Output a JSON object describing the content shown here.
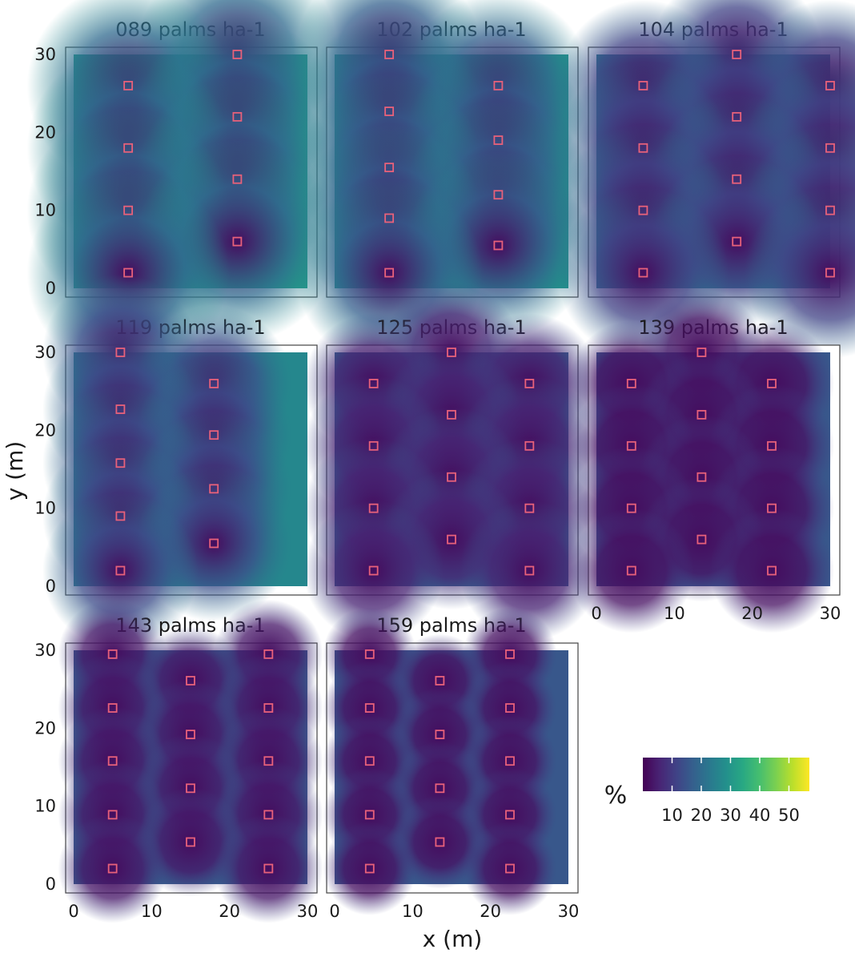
{
  "colors": {
    "palette": "viridis",
    "marker": "#e8617a",
    "panel_border": "#444444",
    "background": "#ffffff"
  },
  "chart_data": {
    "type": "heatmap",
    "layout": "small multiples, 3 columns",
    "xlabel": "x (m)",
    "ylabel": "y (m)",
    "xlim": [
      0,
      30
    ],
    "ylim": [
      0,
      30
    ],
    "x_ticks": [
      "0",
      "10",
      "20",
      "30"
    ],
    "y_ticks": [
      "0",
      "10",
      "20",
      "30"
    ],
    "grid": false,
    "colorbar": {
      "title": "%",
      "range": [
        0,
        57
      ],
      "ticks": [
        "10",
        "20",
        "30",
        "40",
        "50"
      ],
      "tick_values": [
        10,
        20,
        30,
        40,
        50
      ],
      "colormap": "viridis"
    },
    "panels": [
      {
        "title": "089 palms ha-1",
        "mean_value": 28,
        "palm_positions": [
          [
            21,
            30
          ],
          [
            7,
            26
          ],
          [
            21,
            22
          ],
          [
            7,
            18
          ],
          [
            21,
            14
          ],
          [
            7,
            10
          ],
          [
            21,
            6
          ],
          [
            7,
            2
          ]
        ]
      },
      {
        "title": "102 palms ha-1",
        "mean_value": 26,
        "palm_positions": [
          [
            7,
            30
          ],
          [
            21,
            26
          ],
          [
            7,
            22.7
          ],
          [
            21,
            19
          ],
          [
            7,
            15.5
          ],
          [
            21,
            12
          ],
          [
            7,
            9
          ],
          [
            21,
            5.5
          ],
          [
            7,
            2
          ]
        ]
      },
      {
        "title": "104 palms ha-1",
        "mean_value": 20,
        "palm_positions": [
          [
            18,
            30
          ],
          [
            6,
            26
          ],
          [
            30,
            26
          ],
          [
            18,
            22
          ],
          [
            6,
            18
          ],
          [
            30,
            18
          ],
          [
            18,
            14
          ],
          [
            6,
            10
          ],
          [
            30,
            10
          ],
          [
            18,
            6
          ],
          [
            6,
            2
          ],
          [
            30,
            2
          ]
        ]
      },
      {
        "title": "119 palms ha-1",
        "mean_value": 22,
        "palm_positions": [
          [
            6,
            30
          ],
          [
            18,
            26
          ],
          [
            6,
            22.7
          ],
          [
            18,
            19.4
          ],
          [
            6,
            15.8
          ],
          [
            18,
            12.5
          ],
          [
            6,
            9
          ],
          [
            18,
            5.5
          ],
          [
            6,
            2
          ]
        ]
      },
      {
        "title": "125 palms ha-1",
        "mean_value": 14,
        "palm_positions": [
          [
            15,
            30
          ],
          [
            5,
            26
          ],
          [
            25,
            26
          ],
          [
            15,
            22
          ],
          [
            5,
            18
          ],
          [
            25,
            18
          ],
          [
            15,
            14
          ],
          [
            5,
            10
          ],
          [
            25,
            10
          ],
          [
            15,
            6
          ],
          [
            5,
            2
          ],
          [
            25,
            2
          ]
        ]
      },
      {
        "title": "139 palms ha-1",
        "mean_value": 11,
        "palm_positions": [
          [
            13.5,
            30
          ],
          [
            4.5,
            26
          ],
          [
            22.5,
            26
          ],
          [
            13.5,
            22
          ],
          [
            4.5,
            18
          ],
          [
            22.5,
            18
          ],
          [
            13.5,
            14
          ],
          [
            4.5,
            10
          ],
          [
            22.5,
            10
          ],
          [
            13.5,
            6
          ],
          [
            4.5,
            2
          ],
          [
            22.5,
            2
          ]
        ]
      },
      {
        "title": "143 palms ha-1",
        "mean_value": 12,
        "palm_positions": [
          [
            5,
            29.5
          ],
          [
            25,
            29.5
          ],
          [
            15,
            26.1
          ],
          [
            5,
            22.6
          ],
          [
            25,
            22.6
          ],
          [
            15,
            19.2
          ],
          [
            5,
            15.8
          ],
          [
            25,
            15.8
          ],
          [
            15,
            12.3
          ],
          [
            5,
            8.9
          ],
          [
            25,
            8.9
          ],
          [
            15,
            5.4
          ],
          [
            5,
            2
          ],
          [
            25,
            2
          ]
        ]
      },
      {
        "title": "159 palms ha-1",
        "mean_value": 11,
        "palm_positions": [
          [
            4.5,
            29.5
          ],
          [
            22.5,
            29.5
          ],
          [
            13.5,
            26.1
          ],
          [
            4.5,
            22.6
          ],
          [
            22.5,
            22.6
          ],
          [
            13.5,
            19.2
          ],
          [
            4.5,
            15.8
          ],
          [
            22.5,
            15.8
          ],
          [
            13.5,
            12.3
          ],
          [
            4.5,
            8.9
          ],
          [
            22.5,
            8.9
          ],
          [
            13.5,
            5.4
          ],
          [
            4.5,
            2
          ],
          [
            22.5,
            2
          ]
        ]
      }
    ]
  }
}
